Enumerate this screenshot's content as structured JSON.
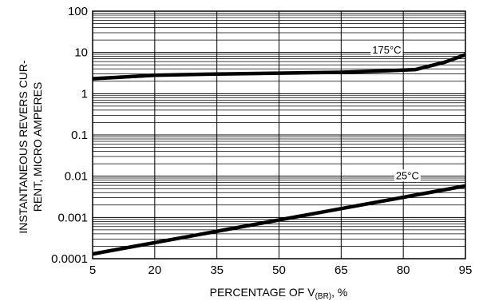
{
  "chart_data": {
    "type": "line",
    "title": "",
    "xlabel": {
      "main": "PERCENTAGE OF V",
      "sub": "(BR)",
      "suffix": ", %"
    },
    "ylabel": {
      "line1": "INSTANTANEOUS REVERS CUR-",
      "line2": "RENT, MICRO AMPERES"
    },
    "x_scale": "linear",
    "y_scale": "log",
    "xlim": [
      5,
      95
    ],
    "ylim": [
      0.0001,
      100
    ],
    "x_ticks": [
      5,
      20,
      35,
      50,
      65,
      80,
      95
    ],
    "x_tick_labels": [
      "5",
      "20",
      "35",
      "50",
      "65",
      "80",
      "95"
    ],
    "y_ticks": [
      0.0001,
      0.001,
      0.01,
      0.1,
      1,
      10,
      100
    ],
    "y_tick_labels": [
      "0.0001",
      "0.001",
      "0.01",
      "0.1",
      "1",
      "10",
      "100"
    ],
    "grid": true,
    "series": [
      {
        "name": "175°C",
        "x": [
          5,
          20,
          35,
          50,
          65,
          75,
          83,
          90,
          95
        ],
        "y": [
          2.3,
          2.8,
          3.0,
          3.15,
          3.3,
          3.55,
          3.85,
          5.8,
          8.8
        ]
      },
      {
        "name": "25°C",
        "x": [
          5,
          95
        ],
        "y": [
          0.00013,
          0.0058
        ]
      }
    ]
  }
}
